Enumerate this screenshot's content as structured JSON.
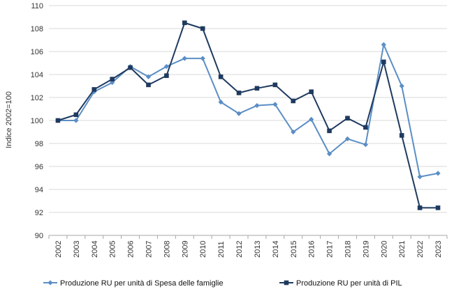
{
  "chart_data": {
    "type": "line",
    "title": "",
    "xlabel": "",
    "ylabel": "Indice 2002=100",
    "ylim": [
      90,
      110
    ],
    "yticks": [
      90,
      92,
      94,
      96,
      98,
      100,
      102,
      104,
      106,
      108,
      110
    ],
    "grid": true,
    "legend_position": "bottom",
    "x": [
      "2002",
      "2003",
      "2004",
      "2005",
      "2006",
      "2007",
      "2008",
      "2009",
      "2010",
      "2011",
      "2012",
      "2013",
      "2014",
      "2015",
      "2016",
      "2017",
      "2018",
      "2019",
      "2020",
      "2021",
      "2022",
      "2023"
    ],
    "series": [
      {
        "name": "Produzione RU per unità di Spesa delle famiglie",
        "color": "#5b8ec5",
        "marker": "diamond",
        "values": [
          100.0,
          100.0,
          102.5,
          103.3,
          104.7,
          103.8,
          104.7,
          105.4,
          105.4,
          101.6,
          100.6,
          101.3,
          101.4,
          99.0,
          100.1,
          97.1,
          98.4,
          97.9,
          106.6,
          103.0,
          95.1,
          95.4
        ]
      },
      {
        "name": "Produzione RU per unità di PIL",
        "color": "#1f3a5f",
        "marker": "square",
        "values": [
          100.0,
          100.5,
          102.7,
          103.6,
          104.6,
          103.1,
          103.9,
          108.5,
          108.0,
          103.8,
          102.4,
          102.8,
          103.1,
          101.7,
          102.5,
          99.1,
          100.2,
          99.4,
          105.1,
          98.7,
          92.4,
          92.4
        ]
      }
    ]
  }
}
